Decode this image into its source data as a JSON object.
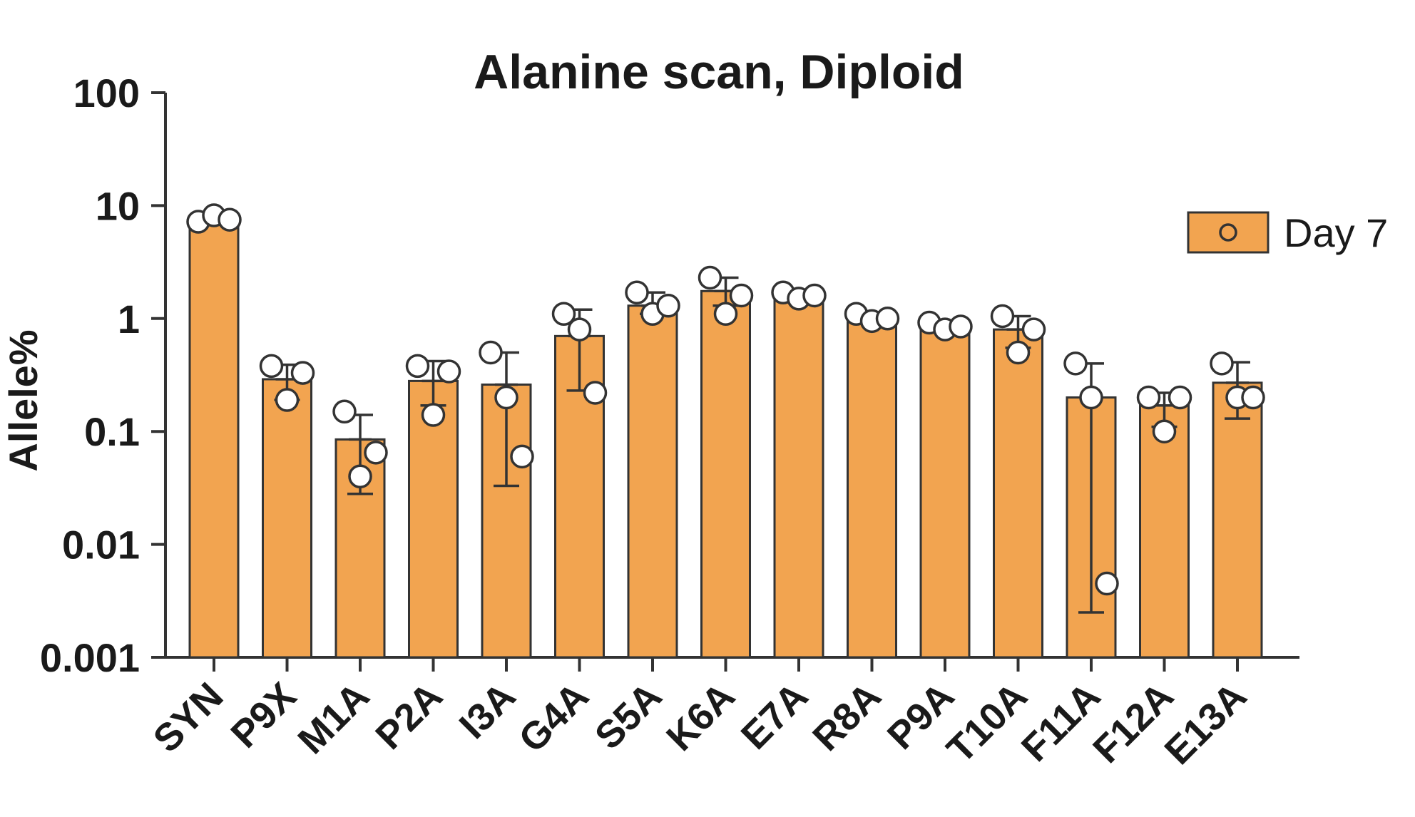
{
  "chart_data": {
    "type": "bar",
    "title": "Alanine scan, Diploid",
    "xlabel": "",
    "ylabel": "Allele%",
    "yscale": "log",
    "ylim": [
      0.001,
      100
    ],
    "yticks": [
      0.001,
      0.01,
      0.1,
      1,
      10,
      100
    ],
    "ytick_labels": [
      "0.001",
      "0.01",
      "0.1",
      "1",
      "10",
      "100"
    ],
    "grid": false,
    "legend_position": "top-right",
    "bar_color": "#f2a450",
    "categories": [
      "SYN",
      "P9X",
      "M1A",
      "P2A",
      "I3A",
      "G4A",
      "S5A",
      "K6A",
      "E7A",
      "R8A",
      "P9A",
      "T10A",
      "F11A",
      "F12A",
      "E13A"
    ],
    "series": [
      {
        "name": "Day 7",
        "values": [
          7.5,
          0.29,
          0.085,
          0.28,
          0.26,
          0.7,
          1.3,
          1.75,
          1.6,
          1.0,
          0.85,
          0.8,
          0.2,
          0.17,
          0.27
        ],
        "error_low": [
          6.8,
          0.19,
          0.028,
          0.17,
          0.033,
          0.23,
          1.1,
          1.3,
          1.5,
          0.95,
          0.78,
          0.55,
          0.0025,
          0.11,
          0.13
        ],
        "error_high": [
          8.3,
          0.39,
          0.14,
          0.42,
          0.5,
          1.2,
          1.7,
          2.3,
          1.7,
          1.1,
          0.92,
          1.05,
          0.4,
          0.22,
          0.41
        ],
        "points": [
          [
            7.2,
            8.2,
            7.5
          ],
          [
            0.38,
            0.19,
            0.33
          ],
          [
            0.15,
            0.04,
            0.065
          ],
          [
            0.38,
            0.14,
            0.34
          ],
          [
            0.5,
            0.2,
            0.06
          ],
          [
            1.1,
            0.8,
            0.22
          ],
          [
            1.7,
            1.1,
            1.3
          ],
          [
            2.3,
            1.1,
            1.6
          ],
          [
            1.7,
            1.5,
            1.6
          ],
          [
            1.1,
            0.95,
            1.0
          ],
          [
            0.92,
            0.8,
            0.85
          ],
          [
            1.05,
            0.5,
            0.8
          ],
          [
            0.4,
            0.2,
            0.0045
          ],
          [
            0.2,
            0.1,
            0.2
          ],
          [
            0.4,
            0.2,
            0.2
          ]
        ]
      }
    ]
  }
}
